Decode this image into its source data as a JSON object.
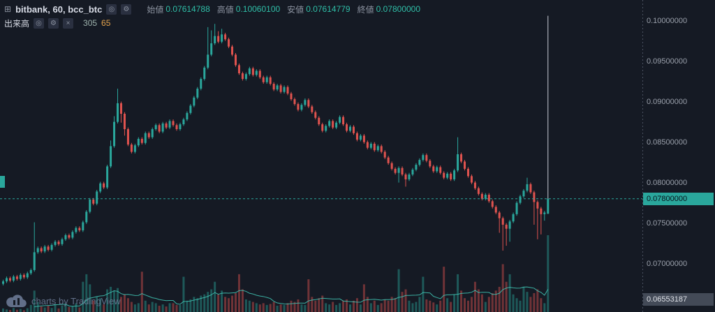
{
  "header": {
    "symbol_title": "bitbank, 60, bcc_btc",
    "ohlc": [
      {
        "label": "始値",
        "value": "0.07614788"
      },
      {
        "label": "高値",
        "value": "0.10060100"
      },
      {
        "label": "安値",
        "value": "0.07614779"
      },
      {
        "label": "終値",
        "value": "0.07800000"
      }
    ],
    "volume_row": {
      "label": "出来高",
      "values": [
        "305",
        "65"
      ]
    }
  },
  "icons": {
    "chart": "⊞",
    "eye": "◎",
    "gear": "⚙",
    "close": "×"
  },
  "axis": {
    "labels": [
      {
        "price": 0.1,
        "text": "0.10000000"
      },
      {
        "price": 0.095,
        "text": "0.09500000"
      },
      {
        "price": 0.09,
        "text": "0.09000000"
      },
      {
        "price": 0.085,
        "text": "0.08500000"
      },
      {
        "price": 0.08,
        "text": "0.08000000"
      },
      {
        "price": 0.075,
        "text": "0.07500000"
      },
      {
        "price": 0.07,
        "text": "0.07000000"
      }
    ],
    "last_price": {
      "text": "0.07800000",
      "price": 0.078
    },
    "low_label": {
      "text": "0.06553187",
      "price": 0.0655319
    }
  },
  "watermark": {
    "text": "charts by TradingView"
  },
  "colors": {
    "background": "#151a24",
    "up": "#2aa79c",
    "down": "#e0534f",
    "vol_up": "rgba(42,167,156,0.45)",
    "vol_down": "rgba(224,83,79,0.45)",
    "vol_ma_line": "#3fc1b0",
    "accent_price": "#2aa79c",
    "price_badge_text": "#06121a",
    "axis_text": "#9aa0ab",
    "axis_line": "#4a5160",
    "title_text": "#d8dce6",
    "legend_label": "#8a919e",
    "legend_value": "#2fbfa8",
    "volume_value": "#9db2ac",
    "volume_ma_value": "#e2a24c",
    "low_badge_bg": "#434a57",
    "low_badge_text": "#dfe2e8",
    "last_wick": "#c9ccd6",
    "watermark": "#6b7994",
    "chip_bg": "#2a3040",
    "chip_text": "#8a919e"
  },
  "chart_data": {
    "type": "candlestick",
    "title": "bitbank, 60, bcc_btc",
    "interval_minutes": 60,
    "price_scale": 0.0001,
    "price_range_visible": [
      0.0644,
      0.1025
    ],
    "last_bar": {
      "open": 0.07614788,
      "high": 0.100601,
      "low": 0.07614779,
      "close": 0.078,
      "volume": 305
    },
    "volume": {
      "max_scale": 305,
      "ma_window": 10,
      "ma_current": 65
    },
    "candles": [
      [
        675,
        680,
        673,
        678,
        14
      ],
      [
        678,
        684,
        676,
        682,
        10
      ],
      [
        682,
        684,
        677,
        679,
        8
      ],
      [
        679,
        686,
        677,
        684,
        16
      ],
      [
        684,
        686,
        679,
        681,
        9
      ],
      [
        681,
        688,
        679,
        686,
        12
      ],
      [
        686,
        688,
        681,
        683,
        7
      ],
      [
        683,
        690,
        681,
        688,
        15
      ],
      [
        688,
        694,
        686,
        692,
        28
      ],
      [
        692,
        751,
        690,
        714,
        85
      ],
      [
        714,
        721,
        712,
        719,
        40
      ],
      [
        719,
        721,
        713,
        715,
        22
      ],
      [
        715,
        723,
        713,
        721,
        18
      ],
      [
        721,
        723,
        715,
        717,
        25
      ],
      [
        717,
        725,
        715,
        723,
        16
      ],
      [
        723,
        729,
        721,
        727,
        30
      ],
      [
        727,
        729,
        722,
        724,
        14
      ],
      [
        724,
        732,
        722,
        730,
        26
      ],
      [
        730,
        737,
        728,
        735,
        32
      ],
      [
        735,
        737,
        730,
        732,
        20
      ],
      [
        732,
        741,
        730,
        739,
        24
      ],
      [
        739,
        746,
        737,
        744,
        35
      ],
      [
        744,
        746,
        739,
        741,
        18
      ],
      [
        741,
        753,
        739,
        751,
        120
      ],
      [
        751,
        766,
        749,
        764,
        150
      ],
      [
        764,
        781,
        762,
        779,
        110
      ],
      [
        779,
        781,
        772,
        774,
        45
      ],
      [
        774,
        791,
        772,
        789,
        60
      ],
      [
        789,
        801,
        787,
        799,
        55
      ],
      [
        799,
        801,
        792,
        794,
        30
      ],
      [
        794,
        822,
        792,
        820,
        90
      ],
      [
        820,
        852,
        818,
        845,
        100
      ],
      [
        845,
        882,
        843,
        875,
        85
      ],
      [
        875,
        916,
        873,
        898,
        95
      ],
      [
        898,
        900,
        874,
        885,
        60
      ],
      [
        885,
        887,
        858,
        866,
        70
      ],
      [
        866,
        868,
        845,
        847,
        55
      ],
      [
        847,
        849,
        836,
        838,
        40
      ],
      [
        838,
        848,
        836,
        846,
        30
      ],
      [
        846,
        856,
        844,
        854,
        35
      ],
      [
        854,
        856,
        847,
        849,
        160
      ],
      [
        849,
        863,
        847,
        861,
        45
      ],
      [
        861,
        863,
        854,
        856,
        30
      ],
      [
        856,
        868,
        854,
        866,
        40
      ],
      [
        866,
        873,
        864,
        871,
        35
      ],
      [
        871,
        873,
        861,
        863,
        25
      ],
      [
        863,
        875,
        861,
        873,
        30
      ],
      [
        873,
        875,
        866,
        868,
        22
      ],
      [
        868,
        878,
        866,
        876,
        35
      ],
      [
        876,
        878,
        869,
        871,
        35
      ],
      [
        871,
        873,
        864,
        866,
        28
      ],
      [
        866,
        874,
        864,
        872,
        28
      ],
      [
        872,
        880,
        870,
        878,
        140
      ],
      [
        878,
        888,
        876,
        886,
        45
      ],
      [
        886,
        897,
        884,
        895,
        50
      ],
      [
        895,
        907,
        893,
        905,
        60
      ],
      [
        905,
        918,
        903,
        916,
        55
      ],
      [
        916,
        930,
        914,
        928,
        65
      ],
      [
        928,
        944,
        926,
        942,
        70
      ],
      [
        942,
        992,
        940,
        958,
        80
      ],
      [
        958,
        988,
        956,
        972,
        90
      ],
      [
        972,
        996,
        970,
        981,
        120
      ],
      [
        981,
        987,
        972,
        974,
        70
      ],
      [
        974,
        990,
        972,
        983,
        85
      ],
      [
        983,
        985,
        975,
        977,
        60
      ],
      [
        977,
        979,
        966,
        968,
        55
      ],
      [
        968,
        970,
        956,
        958,
        65
      ],
      [
        958,
        960,
        943,
        945,
        75
      ],
      [
        945,
        947,
        933,
        935,
        150
      ],
      [
        935,
        937,
        926,
        928,
        90
      ],
      [
        928,
        936,
        926,
        934,
        50
      ],
      [
        934,
        943,
        932,
        941,
        45
      ],
      [
        941,
        943,
        931,
        933,
        40
      ],
      [
        933,
        940,
        931,
        938,
        35
      ],
      [
        938,
        940,
        928,
        930,
        30
      ],
      [
        930,
        932,
        922,
        924,
        35
      ],
      [
        924,
        932,
        922,
        930,
        28
      ],
      [
        930,
        932,
        920,
        922,
        32
      ],
      [
        922,
        924,
        913,
        915,
        40
      ],
      [
        915,
        922,
        913,
        920,
        25
      ],
      [
        920,
        922,
        910,
        912,
        30
      ],
      [
        912,
        920,
        910,
        918,
        28
      ],
      [
        918,
        920,
        908,
        910,
        35
      ],
      [
        910,
        912,
        901,
        903,
        45
      ],
      [
        903,
        905,
        895,
        897,
        40
      ],
      [
        897,
        899,
        888,
        890,
        50
      ],
      [
        890,
        898,
        888,
        896,
        30
      ],
      [
        896,
        904,
        894,
        902,
        28
      ],
      [
        902,
        904,
        892,
        894,
        130
      ],
      [
        894,
        896,
        885,
        887,
        60
      ],
      [
        887,
        889,
        878,
        880,
        45
      ],
      [
        880,
        882,
        870,
        872,
        55
      ],
      [
        872,
        874,
        862,
        864,
        65
      ],
      [
        864,
        872,
        862,
        870,
        35
      ],
      [
        870,
        878,
        868,
        876,
        30
      ],
      [
        876,
        878,
        866,
        868,
        40
      ],
      [
        868,
        876,
        866,
        874,
        28
      ],
      [
        874,
        883,
        872,
        881,
        35
      ],
      [
        881,
        883,
        870,
        872,
        45
      ],
      [
        872,
        874,
        862,
        864,
        50
      ],
      [
        864,
        871,
        862,
        869,
        30
      ],
      [
        869,
        871,
        859,
        861,
        45
      ],
      [
        861,
        863,
        851,
        853,
        55
      ],
      [
        853,
        860,
        851,
        858,
        30
      ],
      [
        858,
        860,
        848,
        850,
        110
      ],
      [
        850,
        852,
        841,
        843,
        60
      ],
      [
        843,
        850,
        841,
        848,
        35
      ],
      [
        848,
        850,
        838,
        840,
        45
      ],
      [
        840,
        847,
        838,
        845,
        28
      ],
      [
        845,
        847,
        836,
        838,
        35
      ],
      [
        838,
        840,
        829,
        831,
        50
      ],
      [
        831,
        833,
        822,
        824,
        45
      ],
      [
        824,
        826,
        815,
        817,
        60
      ],
      [
        817,
        819,
        810,
        812,
        55
      ],
      [
        812,
        820,
        800,
        818,
        170
      ],
      [
        818,
        820,
        808,
        810,
        80
      ],
      [
        810,
        812,
        795,
        804,
        90
      ],
      [
        804,
        812,
        802,
        810,
        45
      ],
      [
        810,
        818,
        808,
        816,
        35
      ],
      [
        816,
        824,
        814,
        822,
        40
      ],
      [
        822,
        830,
        820,
        828,
        60
      ],
      [
        828,
        836,
        826,
        834,
        140
      ],
      [
        834,
        836,
        825,
        827,
        50
      ],
      [
        827,
        829,
        818,
        820,
        45
      ],
      [
        820,
        822,
        812,
        814,
        38
      ],
      [
        814,
        821,
        812,
        819,
        30
      ],
      [
        819,
        821,
        810,
        812,
        45
      ],
      [
        812,
        814,
        804,
        806,
        180
      ],
      [
        806,
        813,
        804,
        811,
        55
      ],
      [
        811,
        813,
        802,
        804,
        40
      ],
      [
        804,
        817,
        802,
        815,
        70
      ],
      [
        815,
        856,
        813,
        835,
        150
      ],
      [
        835,
        837,
        824,
        826,
        85
      ],
      [
        826,
        828,
        815,
        817,
        55
      ],
      [
        817,
        819,
        806,
        808,
        45
      ],
      [
        808,
        810,
        798,
        800,
        60
      ],
      [
        800,
        802,
        791,
        793,
        120
      ],
      [
        793,
        795,
        784,
        786,
        90
      ],
      [
        786,
        788,
        778,
        780,
        70
      ],
      [
        780,
        787,
        778,
        785,
        40
      ],
      [
        785,
        787,
        775,
        777,
        60
      ],
      [
        777,
        779,
        768,
        770,
        75
      ],
      [
        770,
        772,
        761,
        763,
        85
      ],
      [
        763,
        765,
        738,
        756,
        100
      ],
      [
        756,
        758,
        716,
        748,
        190
      ],
      [
        748,
        750,
        722,
        743,
        120
      ],
      [
        743,
        754,
        727,
        752,
        150
      ],
      [
        752,
        763,
        750,
        761,
        70
      ],
      [
        761,
        777,
        759,
        775,
        55
      ],
      [
        775,
        785,
        773,
        783,
        45
      ],
      [
        783,
        792,
        781,
        790,
        100
      ],
      [
        790,
        806,
        788,
        798,
        80
      ],
      [
        798,
        800,
        786,
        788,
        60
      ],
      [
        788,
        790,
        748,
        776,
        75
      ],
      [
        776,
        778,
        730,
        768,
        90
      ],
      [
        768,
        770,
        736,
        761,
        55
      ],
      [
        761,
        765,
        753,
        763,
        35
      ],
      [
        761.5,
        1006,
        761.5,
        780,
        305
      ]
    ]
  }
}
